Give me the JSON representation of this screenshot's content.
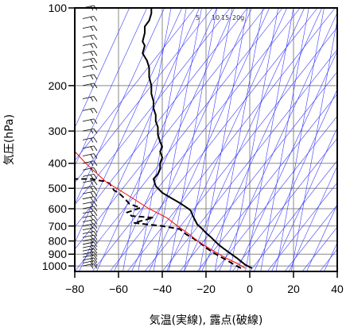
{
  "chart_data": {
    "type": "line",
    "title": "",
    "xlabel": "気温(実線), 露点(破線)",
    "ylabel": "気圧(hPa)",
    "xlim": [
      -80,
      40
    ],
    "ylim": [
      1050,
      100
    ],
    "y_scale": "log",
    "x_ticks": [
      "−80",
      "−60",
      "−40",
      "−20",
      "0",
      "20",
      "40"
    ],
    "x_tick_values": [
      -80,
      -60,
      -40,
      -20,
      0,
      20,
      40
    ],
    "y_ticks": [
      "100",
      "200",
      "300",
      "400",
      "500",
      "600",
      "700",
      "800",
      "900",
      "1000"
    ],
    "y_tick_values": [
      100,
      200,
      300,
      400,
      500,
      600,
      700,
      800,
      900,
      1000
    ],
    "mixing_ratio_labels": [
      "5",
      "10",
      "15",
      "20g"
    ],
    "grid": true,
    "colors": {
      "temperature": "#000000",
      "dewpoint": "#000000",
      "parcel": "#ff0000",
      "adiabats": "#3a3aff",
      "grid": "#888888"
    },
    "series": [
      {
        "style": "solid",
        "points": [
          [
            1,
            1020
          ],
          [
            -2,
            990
          ],
          [
            -4,
            960
          ],
          [
            -6,
            930
          ],
          [
            -8,
            905
          ],
          [
            -10,
            880
          ],
          [
            -12,
            855
          ],
          [
            -14,
            830
          ],
          [
            -16,
            800
          ],
          [
            -18,
            770
          ],
          [
            -20,
            745
          ],
          [
            -22,
            715
          ],
          [
            -24,
            690
          ],
          [
            -25,
            665
          ],
          [
            -26,
            640
          ],
          [
            -27,
            610
          ],
          [
            -28,
            600
          ],
          [
            -32,
            570
          ],
          [
            -36,
            545
          ],
          [
            -40,
            520
          ],
          [
            -43,
            490
          ],
          [
            -44,
            460
          ],
          [
            -42,
            440
          ],
          [
            -41,
            420
          ],
          [
            -41,
            400
          ],
          [
            -40,
            380
          ],
          [
            -41,
            360
          ],
          [
            -40,
            345
          ],
          [
            -41,
            330
          ],
          [
            -42,
            310
          ],
          [
            -42,
            290
          ],
          [
            -43,
            275
          ],
          [
            -43,
            260
          ],
          [
            -44,
            245
          ],
          [
            -44,
            230
          ],
          [
            -45,
            215
          ],
          [
            -45,
            200
          ],
          [
            -46,
            185
          ],
          [
            -46,
            170
          ],
          [
            -47,
            160
          ],
          [
            -49,
            150
          ],
          [
            -48,
            140
          ],
          [
            -49,
            135
          ],
          [
            -48,
            125
          ],
          [
            -48,
            118
          ],
          [
            -46,
            112
          ],
          [
            -45,
            105
          ],
          [
            -45,
            100
          ]
        ]
      },
      {
        "style": "dashed",
        "points": [
          [
            -4,
            1020
          ],
          [
            -7,
            990
          ],
          [
            -10,
            955
          ],
          [
            -13,
            925
          ],
          [
            -16,
            895
          ],
          [
            -20,
            850
          ],
          [
            -23,
            810
          ],
          [
            -26,
            780
          ],
          [
            -29,
            755
          ],
          [
            -32,
            720
          ],
          [
            -40,
            700
          ],
          [
            -47,
            690
          ],
          [
            -53,
            680
          ],
          [
            -44,
            650
          ],
          [
            -54,
            640
          ],
          [
            -56,
            620
          ],
          [
            -50,
            595
          ],
          [
            -55,
            575
          ],
          [
            -57,
            550
          ],
          [
            -60,
            520
          ],
          [
            -62,
            510
          ],
          [
            -64,
            480
          ],
          [
            -66,
            470
          ],
          [
            -70,
            465
          ],
          [
            -72,
            460
          ],
          [
            -75,
            460
          ],
          [
            -80,
            460
          ]
        ]
      },
      {
        "style": "parcel",
        "points": [
          [
            -2,
            1020
          ],
          [
            -6,
            975
          ],
          [
            -11,
            930
          ],
          [
            -17,
            870
          ],
          [
            -23,
            810
          ],
          [
            -28,
            750
          ],
          [
            -33,
            700
          ],
          [
            -38,
            650
          ],
          [
            -46,
            600
          ],
          [
            -56,
            530
          ],
          [
            -66,
            470
          ],
          [
            -75,
            400
          ],
          [
            -80,
            360
          ]
        ]
      }
    ],
    "wind_barbs_levels": [
      1000,
      975,
      950,
      925,
      900,
      875,
      850,
      825,
      800,
      775,
      750,
      725,
      700,
      675,
      650,
      625,
      600,
      575,
      550,
      525,
      500,
      475,
      450,
      425,
      400,
      375,
      350,
      325,
      300,
      275,
      250,
      225,
      200,
      185,
      170,
      160,
      150,
      140,
      130,
      120,
      110,
      100
    ]
  }
}
